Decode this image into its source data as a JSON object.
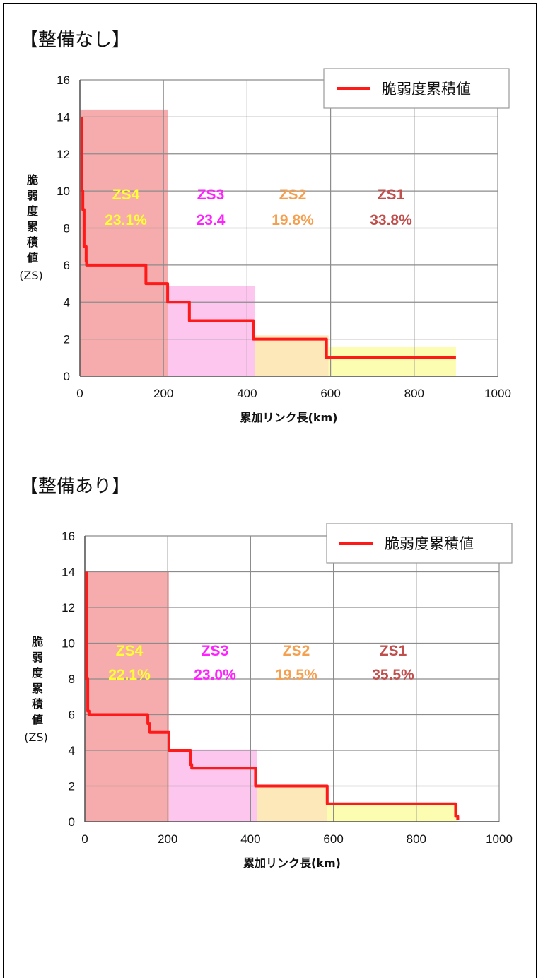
{
  "sections": [
    {
      "title": "【整備なし】"
    },
    {
      "title": "【整備あり】"
    }
  ],
  "chart_data": [
    {
      "type": "line",
      "xlabel": "累加リンク長(km)",
      "ylabel": "脆弱度累積値(ZS)",
      "xlim": [
        0,
        1000
      ],
      "ylim": [
        0,
        16
      ],
      "x_ticks": [
        "0",
        "200",
        "400",
        "600",
        "800",
        "1000"
      ],
      "y_ticks": [
        "0",
        "2",
        "4",
        "6",
        "8",
        "10",
        "12",
        "14",
        "16"
      ],
      "grid": true,
      "legend_position": "top-right",
      "series": [
        {
          "name": "脆弱度累積値",
          "color": "#ff1a1a",
          "x": [
            5,
            5,
            7,
            7,
            10,
            10,
            15,
            15,
            16,
            16,
            158,
            158,
            210,
            210,
            262,
            262,
            415,
            415,
            590,
            590,
            900
          ],
          "y": [
            14,
            10,
            10,
            9,
            9,
            7,
            7,
            6.2,
            6.2,
            6,
            6,
            5,
            5,
            4,
            4,
            3,
            3,
            2,
            2,
            1,
            1
          ]
        }
      ],
      "zones": [
        {
          "name": "ZS4",
          "percent": "23.1%",
          "x0": 0,
          "x1": 210,
          "height": 14.4,
          "fill": "#f5a3a3",
          "text_color": "#ffff33"
        },
        {
          "name": "ZS3",
          "percent": "23.4",
          "x0": 210,
          "x1": 418,
          "height": 4.85,
          "fill": "#fcc0ec",
          "text_color": "#ff22ff"
        },
        {
          "name": "ZS2",
          "percent": "19.8%",
          "x0": 418,
          "x1": 595,
          "height": 2.2,
          "fill": "#fde5b3",
          "text_color": "#f5a050"
        },
        {
          "name": "ZS1",
          "percent": "33.8%",
          "x0": 595,
          "x1": 900,
          "height": 1.6,
          "fill": "#fdfda8",
          "text_color": "#c0504d"
        }
      ]
    },
    {
      "type": "line",
      "xlabel": "累加リンク長(km)",
      "ylabel": "脆弱度累積値(ZS)",
      "xlim": [
        0,
        1000
      ],
      "ylim": [
        0,
        16
      ],
      "x_ticks": [
        "0",
        "200",
        "400",
        "600",
        "800",
        "1000"
      ],
      "y_ticks": [
        "0",
        "2",
        "4",
        "6",
        "8",
        "10",
        "12",
        "14",
        "16"
      ],
      "grid": true,
      "legend_position": "top-right",
      "series": [
        {
          "name": "脆弱度累積値",
          "color": "#ff1a1a",
          "x": [
            4,
            4,
            7,
            7,
            10,
            10,
            152,
            152,
            157,
            157,
            203,
            203,
            255,
            255,
            258,
            258,
            412,
            412,
            585,
            585,
            895,
            895,
            900,
            900
          ],
          "y": [
            14,
            8,
            8,
            6.2,
            6.2,
            6,
            6,
            5.5,
            5.5,
            5,
            5,
            4,
            4,
            3.2,
            3.2,
            3,
            3,
            2,
            2,
            1,
            1,
            0.3,
            0.3,
            0.1
          ]
        }
      ],
      "zones": [
        {
          "name": "ZS4",
          "percent": "22.1%",
          "x0": 0,
          "x1": 203,
          "height": 14.0,
          "fill": "#f5a3a3",
          "text_color": "#ffff33"
        },
        {
          "name": "ZS3",
          "percent": "23.0%",
          "x0": 203,
          "x1": 415,
          "height": 4.05,
          "fill": "#fcc0ec",
          "text_color": "#ff22ff"
        },
        {
          "name": "ZS2",
          "percent": "19.5%",
          "x0": 415,
          "x1": 585,
          "height": 1.95,
          "fill": "#fde5b3",
          "text_color": "#f5a050"
        },
        {
          "name": "ZS1",
          "percent": "35.5%",
          "x0": 585,
          "x1": 900,
          "height": 1.0,
          "fill": "#fdfda8",
          "text_color": "#c0504d"
        }
      ]
    }
  ]
}
